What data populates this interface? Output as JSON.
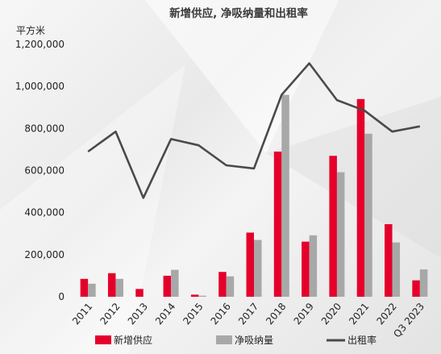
{
  "chart_data": {
    "type": "bar",
    "title": "新增供应, 净吸纳量和出租率",
    "ylabel": "平方米",
    "ylim": [
      0,
      1200000
    ],
    "yticks": [
      "0",
      "200,000",
      "400,000",
      "600,000",
      "800,000",
      "1,000,000",
      "1,200,000"
    ],
    "categories": [
      "2011",
      "2012",
      "2013",
      "2014",
      "2015",
      "2016",
      "2017",
      "2018",
      "2019",
      "2020",
      "2021",
      "2022",
      "Q3 2023"
    ],
    "series": [
      {
        "name": "新增供应",
        "type": "bar",
        "color": "#e5002b",
        "values": [
          85000,
          112000,
          37000,
          100000,
          10000,
          118000,
          305000,
          690000,
          262000,
          670000,
          940000,
          345000,
          78000
        ]
      },
      {
        "name": "净吸纳量",
        "type": "bar",
        "color": "#a8a8a8",
        "values": [
          62000,
          85000,
          0,
          128000,
          5000,
          97000,
          270000,
          960000,
          292000,
          592000,
          775000,
          258000,
          130000
        ]
      },
      {
        "name": "出租率",
        "type": "line",
        "color": "#4a4a4a",
        "values": [
          0.69,
          0.785,
          0.47,
          0.75,
          0.72,
          0.625,
          0.61,
          0.96,
          1.11,
          0.935,
          0.885,
          0.785,
          0.81
        ]
      }
    ],
    "legend_position": "bottom",
    "grid": false
  }
}
